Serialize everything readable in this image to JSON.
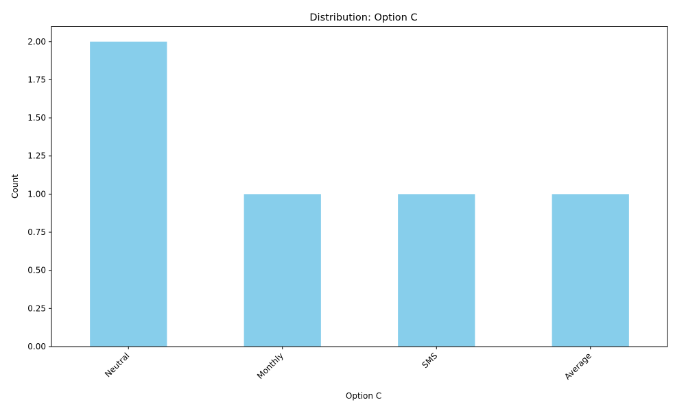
{
  "chart_data": {
    "type": "bar",
    "title": "Distribution: Option C",
    "xlabel": "Option C",
    "ylabel": "Count",
    "categories": [
      "Neutral",
      "Monthly",
      "SMS",
      "Average"
    ],
    "values": [
      2,
      1,
      1,
      1
    ],
    "ylim": [
      0,
      2.1
    ],
    "yticks": [
      "0.00",
      "0.25",
      "0.50",
      "0.75",
      "1.00",
      "1.25",
      "1.50",
      "1.75",
      "2.00"
    ],
    "grid": false,
    "bar_color": "#87ceeb"
  }
}
